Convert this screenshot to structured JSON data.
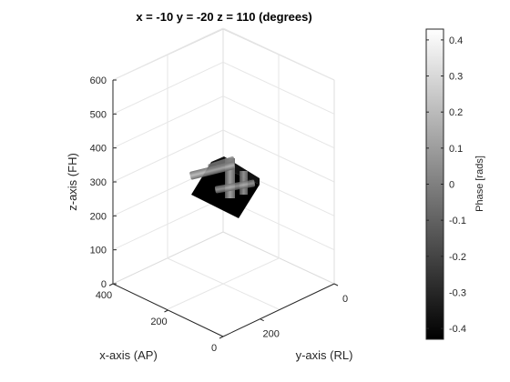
{
  "chart_data": {
    "type": "volume-3d",
    "title": "x = -10 y = -20 z = 110 (degrees)",
    "view": {
      "x_deg": -10,
      "y_deg": -20,
      "z_deg": 110
    },
    "axes": {
      "x": {
        "label": "x-axis (AP)",
        "ticks": [
          0,
          200,
          400
        ],
        "tick_labels": [
          "0",
          "200",
          "400"
        ],
        "range": [
          0,
          400
        ]
      },
      "y": {
        "label": "y-axis (RL)",
        "ticks": [
          0,
          200
        ],
        "tick_labels": [
          "0",
          "200"
        ],
        "range": [
          0,
          300
        ]
      },
      "z": {
        "label": "z-axis (FH)",
        "ticks": [
          0,
          100,
          200,
          300,
          400,
          500,
          600
        ],
        "tick_labels": [
          "0",
          "100",
          "200",
          "300",
          "400",
          "500",
          "600"
        ],
        "range": [
          0,
          600
        ]
      }
    },
    "grid": true,
    "colorbar": {
      "label": "Phase [rads]",
      "colormap": "gray",
      "range": [
        -0.43,
        0.43
      ],
      "ticks": [
        0.4,
        0.3,
        0.2,
        0.1,
        0,
        -0.1,
        -0.2,
        -0.3,
        -0.4
      ],
      "tick_labels": [
        "0.4",
        "0.3",
        "0.2",
        "0.1",
        "0",
        "-0.1",
        "-0.2",
        "-0.3",
        "-0.4"
      ]
    }
  }
}
